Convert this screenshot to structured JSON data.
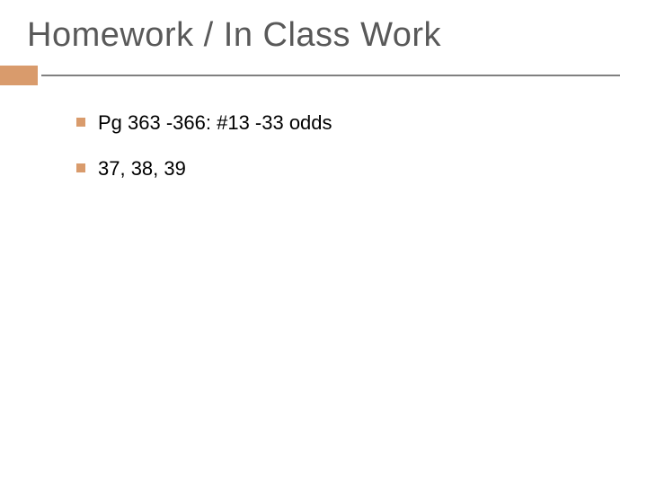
{
  "slide": {
    "title": "Homework / In Class Work",
    "bullets": [
      {
        "text": "Pg 363 -366: #13 -33 odds"
      },
      {
        "text": "37, 38, 39"
      }
    ]
  },
  "style": {
    "background_color": "#ffffff",
    "title_color": "#595959",
    "title_fontsize": 38,
    "title_fontweight": 400,
    "accent_color": "#d99b6c",
    "divider_color": "#808080",
    "divider_height": 2,
    "accent_block_width": 42,
    "accent_block_height": 22,
    "bullet_square_size": 10,
    "bullet_square_color": "#d99b6c",
    "body_text_color": "#000000",
    "body_fontsize": 22,
    "font_family": "Arial"
  }
}
